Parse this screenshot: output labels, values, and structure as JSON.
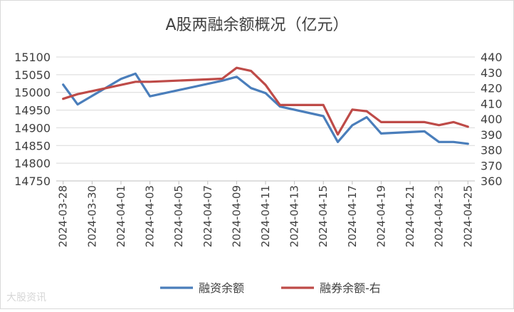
{
  "chart_data": {
    "type": "line",
    "title": "A股两融余额概况（亿元）",
    "x": [
      "2024-03-28",
      "2024-03-29",
      "2024-04-01",
      "2024-04-02",
      "2024-04-03",
      "2024-04-08",
      "2024-04-09",
      "2024-04-10",
      "2024-04-11",
      "2024-04-12",
      "2024-04-15",
      "2024-04-16",
      "2024-04-17",
      "2024-04-18",
      "2024-04-19",
      "2024-04-22",
      "2024-04-23",
      "2024-04-24",
      "2024-04-25"
    ],
    "x_ticks": [
      "2024-03-28",
      "2024-03-30",
      "2024-04-01",
      "2024-04-03",
      "2024-04-05",
      "2024-04-07",
      "2024-04-09",
      "2024-04-11",
      "2024-04-13",
      "2024-04-15",
      "2024-04-17",
      "2024-04-19",
      "2024-04-21",
      "2024-04-23",
      "2024-04-25"
    ],
    "y_left": {
      "ticks": [
        14750,
        14800,
        14850,
        14900,
        14950,
        15000,
        15050,
        15100
      ],
      "lim": [
        14750,
        15100
      ]
    },
    "y_right": {
      "ticks": [
        360,
        370,
        380,
        390,
        400,
        410,
        420,
        430,
        440
      ],
      "lim": [
        360,
        440
      ]
    },
    "series": [
      {
        "name": "融资余额",
        "axis": "left",
        "color": "#4a7ebb",
        "values": [
          15022,
          14966,
          15038,
          15053,
          14989,
          15033,
          15044,
          15012,
          14998,
          14960,
          14933,
          14860,
          14907,
          14930,
          14884,
          14890,
          14860,
          14860,
          14855
        ]
      },
      {
        "name": "融券余额-右",
        "axis": "right",
        "color": "#be4b48",
        "values": [
          413,
          416,
          422,
          424,
          424,
          426,
          433,
          431,
          422,
          409,
          409,
          390,
          406,
          405,
          398,
          398,
          396,
          398,
          395
        ]
      }
    ],
    "grid": "horizontal",
    "legend": "bottom"
  },
  "watermark": "大股资讯"
}
